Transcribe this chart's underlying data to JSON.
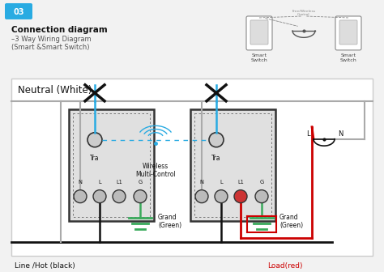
{
  "bg_color": "#f2f2f2",
  "panel_bg": "#ffffff",
  "title_box_color": "#29abe2",
  "title_box_text": "03",
  "heading": "Connection diagram",
  "subheading1": "–3 Way Wiring Diagram",
  "subheading2": "(Smart &Smart Switch)",
  "neutral_label": "Neutral (White)",
  "line_hot_label": "Line /Hot (black)",
  "load_label": "Load(red)",
  "grand_green1": "Grand\n(Green)",
  "grand_green2": "Grand\n(Green)",
  "wireless_label": "Wireless\nMulti-Control",
  "tra_label": "Tra",
  "smart_switch": "Smart\nSwitch",
  "wire_colors": {
    "neutral_gray": "#aaaaaa",
    "hot_black": "#111111",
    "load_red": "#cc0000",
    "ground_green": "#3aaa5c",
    "tra_blue": "#29abe2",
    "box_edge": "#555555"
  }
}
